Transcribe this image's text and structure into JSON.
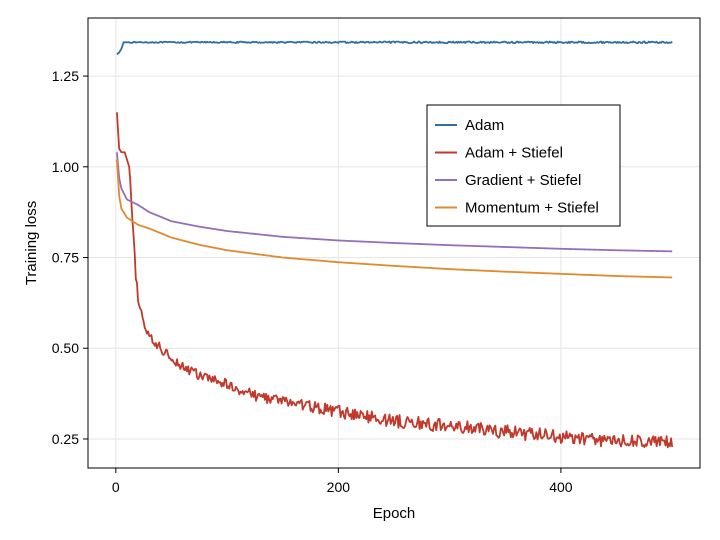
{
  "chart_data": {
    "type": "line",
    "xlabel": "Epoch",
    "ylabel": "Training loss",
    "xlim": [
      -25,
      525
    ],
    "ylim": [
      0.17,
      1.41
    ],
    "xticks": [
      0,
      200,
      400
    ],
    "yticks": [
      0.25,
      0.5,
      0.75,
      1.0,
      1.25
    ],
    "ytick_labels": [
      "0.25",
      "0.50",
      "0.75",
      "1.00",
      "1.25"
    ],
    "grid": true,
    "legend_position": "upper-right-center",
    "series": [
      {
        "name": "Adam",
        "color": "#2f6fa3",
        "noise": 0.0015,
        "x": [
          1,
          3,
          5,
          7,
          10,
          50,
          100,
          200,
          300,
          400,
          500
        ],
        "y": [
          1.31,
          1.315,
          1.325,
          1.343,
          1.343,
          1.343,
          1.343,
          1.343,
          1.343,
          1.343,
          1.343
        ]
      },
      {
        "name": "Adam + Stiefel",
        "color": "#c0392b",
        "noise": 0.012,
        "x": [
          1,
          3,
          5,
          8,
          12,
          15,
          18,
          20,
          25,
          30,
          40,
          50,
          60,
          75,
          100,
          125,
          150,
          175,
          200,
          250,
          300,
          350,
          400,
          450,
          500
        ],
        "y": [
          1.15,
          1.05,
          1.04,
          1.04,
          1.0,
          0.85,
          0.7,
          0.64,
          0.57,
          0.53,
          0.5,
          0.475,
          0.45,
          0.425,
          0.4,
          0.37,
          0.355,
          0.34,
          0.325,
          0.3,
          0.285,
          0.27,
          0.255,
          0.245,
          0.24
        ]
      },
      {
        "name": "Gradient + Stiefel",
        "color": "#9370b8",
        "noise": 0.0,
        "x": [
          1,
          3,
          5,
          10,
          20,
          30,
          50,
          75,
          100,
          150,
          200,
          250,
          300,
          350,
          400,
          450,
          500
        ],
        "y": [
          1.04,
          0.97,
          0.94,
          0.91,
          0.895,
          0.875,
          0.85,
          0.835,
          0.823,
          0.807,
          0.797,
          0.79,
          0.784,
          0.779,
          0.774,
          0.77,
          0.767
        ]
      },
      {
        "name": "Momentum + Stiefel",
        "color": "#e08a2c",
        "noise": 0.0,
        "x": [
          1,
          3,
          5,
          10,
          20,
          30,
          50,
          75,
          100,
          150,
          200,
          250,
          300,
          350,
          400,
          450,
          500
        ],
        "y": [
          1.02,
          0.92,
          0.885,
          0.86,
          0.84,
          0.83,
          0.805,
          0.785,
          0.77,
          0.75,
          0.737,
          0.727,
          0.718,
          0.711,
          0.705,
          0.699,
          0.695
        ]
      }
    ]
  }
}
